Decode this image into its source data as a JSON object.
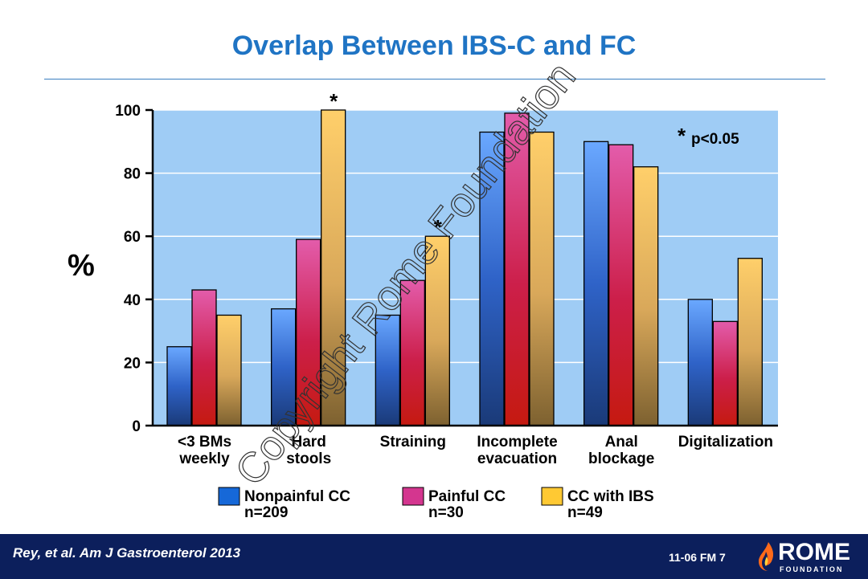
{
  "title": "Overlap Between IBS-C and FC",
  "chart_data": {
    "type": "bar",
    "categories": [
      [
        "<3 BMs",
        "weekly"
      ],
      [
        "Hard",
        "stools"
      ],
      [
        "Straining"
      ],
      [
        "Incomplete",
        "evacuation"
      ],
      [
        "Anal",
        "blockage"
      ],
      [
        "Digitalization"
      ]
    ],
    "series": [
      {
        "name": "Nonpainful CC",
        "n": "n=209",
        "values": [
          25,
          37,
          35,
          93,
          90,
          40
        ]
      },
      {
        "name": "Painful CC",
        "n": "n=30",
        "values": [
          43,
          59,
          46,
          99,
          89,
          33
        ]
      },
      {
        "name": "CC with IBS",
        "n": "n=49",
        "values": [
          35,
          100,
          60,
          93,
          82,
          53
        ]
      }
    ],
    "ylabel": "%",
    "ylim": [
      0,
      100
    ],
    "yticks": [
      "0",
      "20",
      "40",
      "60",
      "80",
      "100"
    ],
    "significance": [
      {
        "category_index": 1,
        "series_index": 2,
        "mark": "*"
      },
      {
        "category_index": 2,
        "series_index": 2,
        "mark": "*"
      }
    ],
    "annotation": {
      "star": "*",
      "text": "p<0.05"
    },
    "grid": true,
    "legend_position": "bottom"
  },
  "watermark": "Copyright Rome Foundation",
  "colors": {
    "plot_background": "#9fccf5",
    "title": "#1f74c4",
    "footer": "#0c1f5c",
    "legend_blue": "#1668d8",
    "legend_magenta": "#d4368f",
    "legend_yellow": "#ffc933"
  },
  "footer": {
    "citation": "Rey, et al. Am J Gastroenterol 2013",
    "slide_code": "11-06   FM 7",
    "logo_word": "ROME",
    "logo_sub": "FOUNDATION"
  }
}
